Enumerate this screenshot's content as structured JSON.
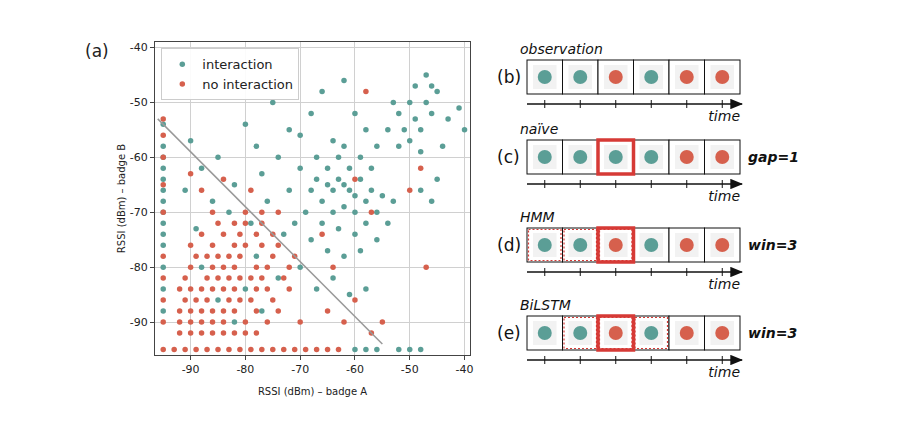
{
  "chart_data": {
    "type": "scatter",
    "panel_label": "(a)",
    "x_label": "RSSI (dBm) – badge A",
    "y_label": "RSSI (dBm) – badge B",
    "xlim": [
      -96.5,
      -39
    ],
    "ylim": [
      -96,
      -39
    ],
    "xticks": [
      -90,
      -80,
      -70,
      -60,
      -50,
      -40
    ],
    "yticks": [
      -90,
      -80,
      -70,
      -60,
      -50,
      -40
    ],
    "grid": true,
    "legend": "upper left",
    "boundary": {
      "x": [
        -96,
        -55
      ],
      "y": [
        -53,
        -94
      ]
    },
    "series": [
      {
        "name": "interaction",
        "color": "#5b9e96",
        "marker": "circle",
        "x": [
          -95,
          -95,
          -95,
          -95,
          -95,
          -95,
          -95,
          -95,
          -95,
          -95,
          -95,
          -95,
          -95,
          -95,
          -65,
          -64,
          -63,
          -62,
          -61,
          -60,
          -66,
          -64,
          -62,
          -60,
          -58,
          -57,
          -59,
          -61,
          -63,
          -65,
          -67,
          -68,
          -69,
          -66,
          -63,
          -60,
          -58,
          -56,
          -55,
          -57,
          -59,
          -62,
          -64,
          -67,
          -70,
          -72,
          -71,
          -68,
          -65,
          -62,
          -59,
          -56,
          -54,
          -53,
          -52,
          -50,
          -49,
          -48,
          -51,
          -53,
          -47,
          -46,
          -50,
          -48,
          -52,
          -54,
          -45,
          -47,
          -46,
          -49,
          -44,
          -45,
          -46,
          -48,
          -41,
          -40,
          -43,
          -75,
          -72,
          -70,
          -68,
          -66,
          -62,
          -60,
          -58,
          -56,
          -78,
          -80,
          -85,
          -88,
          -90,
          -82,
          -77,
          -74,
          -76,
          -79,
          -83,
          -86,
          -89,
          -91,
          -73,
          -78,
          -74,
          -70,
          -67,
          -64,
          -61,
          -58,
          -60,
          -58,
          -56,
          -52,
          -50,
          -48,
          -88,
          -85,
          -82,
          -80,
          -77
        ],
        "y": [
          -54,
          -58,
          -60,
          -62,
          -64,
          -66,
          -68,
          -70,
          -72,
          -74,
          -76,
          -80,
          -84,
          -88,
          -65,
          -66,
          -64,
          -65,
          -66,
          -67,
          -68,
          -70,
          -69,
          -70,
          -68,
          -66,
          -64,
          -62,
          -60,
          -62,
          -64,
          -66,
          -70,
          -72,
          -73,
          -74,
          -72,
          -70,
          -67,
          -62,
          -60,
          -58,
          -57,
          -60,
          -62,
          -66,
          -72,
          -75,
          -77,
          -78,
          -77,
          -75,
          -72,
          -68,
          -52,
          -50,
          -53,
          -55,
          -55,
          -50,
          -50,
          -52,
          -57,
          -59,
          -58,
          -55,
          -48,
          -45,
          -47,
          -47,
          -58,
          -64,
          -68,
          -66,
          -51,
          -55,
          -53,
          -50,
          -55,
          -56,
          -52,
          -48,
          -46,
          -52,
          -55,
          -58,
          -58,
          -54,
          -60,
          -62,
          -57,
          -65,
          -63,
          -60,
          -68,
          -72,
          -70,
          -68,
          -73,
          -66,
          -74,
          -78,
          -82,
          -80,
          -84,
          -82,
          -85,
          -84,
          -95,
          -95,
          -95,
          -95,
          -95,
          -95,
          -80,
          -86,
          -90,
          -84,
          -88
        ]
      },
      {
        "name": "no interaction",
        "color": "#d6604d",
        "marker": "circle",
        "x": [
          -95,
          -93,
          -91,
          -89,
          -87,
          -85,
          -83,
          -81,
          -79,
          -77,
          -75,
          -73,
          -71,
          -69,
          -67,
          -65,
          -63,
          -92,
          -90,
          -88,
          -86,
          -84,
          -82,
          -80,
          -78,
          -92,
          -90,
          -88,
          -86,
          -84,
          -80,
          -76,
          -92,
          -90,
          -88,
          -86,
          -84,
          -82,
          -78,
          -74,
          -91,
          -89,
          -87,
          -83,
          -81,
          -79,
          -75,
          -92,
          -90,
          -88,
          -86,
          -84,
          -82,
          -78,
          -76,
          -72,
          -91,
          -87,
          -85,
          -83,
          -81,
          -79,
          -77,
          -73,
          -90,
          -86,
          -84,
          -82,
          -78,
          -76,
          -72,
          -89,
          -87,
          -85,
          -83,
          -81,
          -75,
          -71,
          -90,
          -86,
          -82,
          -80,
          -77,
          -74,
          -88,
          -84,
          -81,
          -78,
          -75,
          -85,
          -82,
          -80,
          -77,
          -86,
          -80,
          -77,
          -74,
          -88,
          -84,
          -79,
          -90,
          -95,
          -95,
          -95,
          -95,
          -95,
          -95,
          -95,
          -95,
          -95,
          -65,
          -62,
          -60,
          -57,
          -55,
          -64,
          -66,
          -60,
          -57,
          -50,
          -48,
          -58,
          -47,
          -70
        ],
        "y": [
          -95,
          -95,
          -95,
          -95,
          -95,
          -95,
          -95,
          -95,
          -95,
          -95,
          -95,
          -95,
          -95,
          -95,
          -95,
          -95,
          -95,
          -92,
          -92,
          -92,
          -92,
          -92,
          -92,
          -92,
          -92,
          -90,
          -90,
          -90,
          -90,
          -90,
          -90,
          -90,
          -88,
          -88,
          -88,
          -88,
          -88,
          -88,
          -88,
          -88,
          -86,
          -86,
          -86,
          -86,
          -86,
          -86,
          -86,
          -84,
          -84,
          -84,
          -84,
          -84,
          -84,
          -84,
          -84,
          -84,
          -82,
          -82,
          -82,
          -82,
          -82,
          -82,
          -82,
          -82,
          -80,
          -80,
          -80,
          -80,
          -80,
          -80,
          -80,
          -78,
          -78,
          -78,
          -78,
          -78,
          -78,
          -78,
          -76,
          -76,
          -76,
          -76,
          -76,
          -76,
          -74,
          -74,
          -74,
          -74,
          -74,
          -72,
          -72,
          -72,
          -72,
          -70,
          -70,
          -70,
          -70,
          -66,
          -64,
          -66,
          -63,
          -53,
          -56,
          -60,
          -65,
          -70,
          -78,
          -82,
          -86,
          -90,
          -88,
          -90,
          -86,
          -92,
          -90,
          -80,
          -74,
          -64,
          -70,
          -66,
          -62,
          -48,
          -80,
          -90
        ]
      }
    ]
  },
  "diagrams": [
    {
      "label": "(b)",
      "title": "observation",
      "axis_label": "time",
      "states": [
        "interaction",
        "interaction",
        "no interaction",
        "interaction",
        "no interaction",
        "no interaction"
      ]
    },
    {
      "label": "(c)",
      "title": "naïve",
      "axis_label": "time",
      "parameter": "gap=1",
      "highlight": 2,
      "states": [
        "interaction",
        "interaction",
        "interaction",
        "interaction",
        "no interaction",
        "no interaction"
      ]
    },
    {
      "label": "(d)",
      "title": "HMM",
      "axis_label": "time",
      "parameter": "win=3",
      "highlight": 2,
      "window": [
        0,
        2
      ],
      "states": [
        "interaction",
        "interaction",
        "no interaction",
        "interaction",
        "no interaction",
        "no interaction"
      ]
    },
    {
      "label": "(e)",
      "title": "BiLSTM",
      "axis_label": "time",
      "parameter": "win=3",
      "highlight": 2,
      "window": [
        1,
        3
      ],
      "states": [
        "interaction",
        "interaction",
        "no interaction",
        "interaction",
        "no interaction",
        "no interaction"
      ]
    }
  ]
}
